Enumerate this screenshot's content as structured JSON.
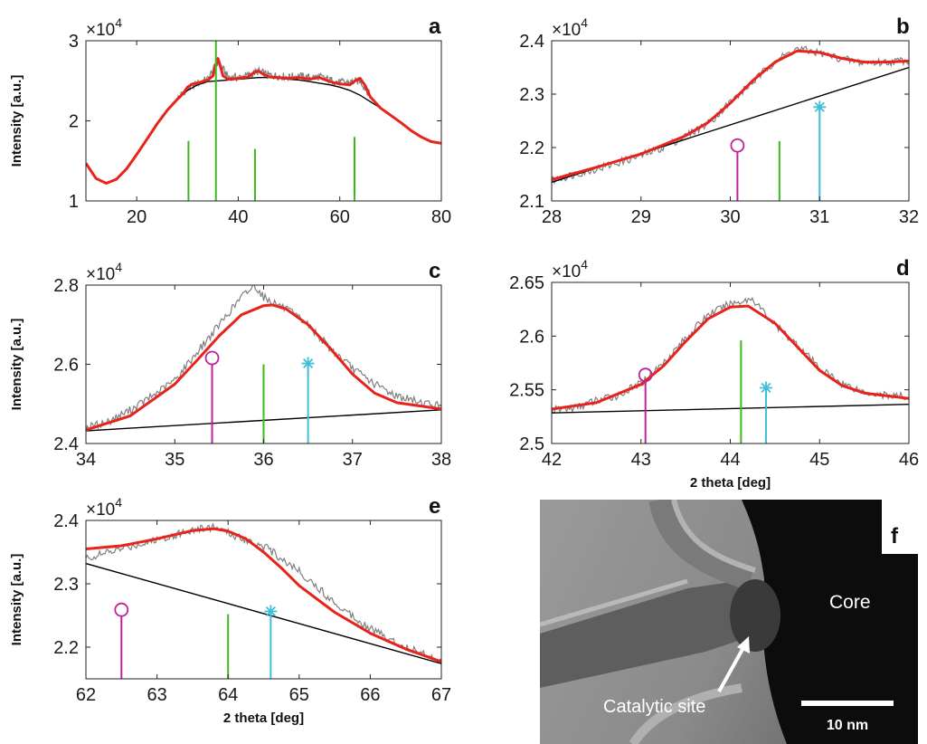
{
  "figure": {
    "ylabel": "Intensity [a.u.]",
    "xlabel": "2 theta [deg]",
    "exponent_prefix": "×10",
    "exponent_power": "4"
  },
  "colors": {
    "raw": "#7f7f7f",
    "fit": "#e8231b",
    "baseline": "#000000",
    "green_ref": "#3cb81c",
    "magenta_ref": "#c0219b",
    "cyan_ref": "#3fbfd9"
  },
  "chart_data": [
    {
      "panel": "a",
      "type": "line",
      "xlim": [
        10,
        80
      ],
      "ylim": [
        1,
        3
      ],
      "xticks": [
        20,
        40,
        60,
        80
      ],
      "yticks": [
        1,
        2,
        3
      ],
      "xtick_labels": [
        "20",
        "40",
        "60",
        "80"
      ],
      "ytick_labels": [
        "1",
        "2",
        "3"
      ],
      "show_ylabel": true,
      "show_xlabel": false,
      "series": [
        {
          "role": "baseline",
          "x": [
            10,
            12,
            14,
            16,
            18,
            20,
            22,
            24,
            26,
            28,
            30,
            32,
            34,
            36,
            38,
            40,
            42,
            44,
            46,
            48,
            50,
            52,
            54,
            56,
            58,
            60,
            62,
            64,
            66,
            68,
            70,
            72,
            74,
            76,
            78,
            80
          ],
          "y": [
            1.47,
            1.28,
            1.22,
            1.27,
            1.4,
            1.58,
            1.77,
            1.96,
            2.13,
            2.27,
            2.38,
            2.45,
            2.49,
            2.5,
            2.51,
            2.52,
            2.53,
            2.54,
            2.54,
            2.53,
            2.52,
            2.51,
            2.49,
            2.47,
            2.45,
            2.42,
            2.38,
            2.32,
            2.24,
            2.16,
            2.07,
            1.98,
            1.88,
            1.8,
            1.74,
            1.72
          ]
        },
        {
          "role": "fit",
          "x": [
            10,
            12,
            14,
            16,
            18,
            20,
            22,
            24,
            26,
            28,
            29,
            30,
            31,
            32,
            33,
            34,
            35,
            35.6,
            36,
            36.4,
            37,
            38,
            40,
            42,
            43,
            44,
            45,
            46,
            48,
            50,
            52,
            54,
            56,
            58,
            60,
            62,
            63,
            64,
            65,
            66,
            68,
            70,
            72,
            74,
            76,
            78,
            80
          ],
          "y": [
            1.47,
            1.28,
            1.22,
            1.27,
            1.4,
            1.58,
            1.77,
            1.96,
            2.13,
            2.27,
            2.33,
            2.42,
            2.46,
            2.47,
            2.49,
            2.51,
            2.56,
            2.7,
            2.78,
            2.7,
            2.56,
            2.52,
            2.53,
            2.55,
            2.6,
            2.62,
            2.58,
            2.55,
            2.54,
            2.53,
            2.54,
            2.52,
            2.54,
            2.49,
            2.46,
            2.45,
            2.5,
            2.53,
            2.44,
            2.3,
            2.16,
            2.07,
            1.98,
            1.88,
            1.8,
            1.74,
            1.72
          ]
        },
        {
          "role": "raw",
          "x": [
            28,
            30,
            32,
            34,
            36,
            38,
            40,
            42,
            44,
            46,
            48,
            50,
            52,
            54,
            56,
            58,
            60,
            62,
            64,
            66
          ],
          "y": [
            2.28,
            2.4,
            2.47,
            2.52,
            2.74,
            2.55,
            2.54,
            2.57,
            2.62,
            2.57,
            2.56,
            2.55,
            2.56,
            2.54,
            2.55,
            2.51,
            2.48,
            2.48,
            2.5,
            2.32
          ]
        }
      ],
      "markers": [
        {
          "x": 30.2,
          "top": 1.75,
          "color": "green",
          "symbol": "none"
        },
        {
          "x": 35.6,
          "top": 3.0,
          "color": "green",
          "symbol": "none"
        },
        {
          "x": 43.3,
          "top": 1.65,
          "color": "green",
          "symbol": "none"
        },
        {
          "x": 62.9,
          "top": 1.8,
          "color": "green",
          "symbol": "none"
        }
      ]
    },
    {
      "panel": "b",
      "type": "line",
      "xlim": [
        28,
        32
      ],
      "ylim": [
        2.1,
        2.4
      ],
      "xticks": [
        28,
        29,
        30,
        31,
        32
      ],
      "yticks": [
        2.1,
        2.2,
        2.3,
        2.4
      ],
      "xtick_labels": [
        "28",
        "29",
        "30",
        "31",
        "32"
      ],
      "ytick_labels": [
        "2.1",
        "2.2",
        "2.3",
        "2.4"
      ],
      "show_ylabel": false,
      "show_xlabel": false,
      "series": [
        {
          "role": "baseline",
          "x": [
            28,
            32
          ],
          "y": [
            2.135,
            2.35
          ]
        },
        {
          "role": "fit",
          "x": [
            28.0,
            28.5,
            29.0,
            29.5,
            29.75,
            30.0,
            30.25,
            30.5,
            30.75,
            31.0,
            31.25,
            31.5,
            31.75,
            32.0
          ],
          "y": [
            2.14,
            2.163,
            2.188,
            2.222,
            2.247,
            2.283,
            2.325,
            2.36,
            2.381,
            2.378,
            2.367,
            2.36,
            2.36,
            2.362
          ]
        },
        {
          "role": "raw",
          "x": [
            28.0,
            28.25,
            28.5,
            28.75,
            29.0,
            29.25,
            29.5,
            29.75,
            30.0,
            30.25,
            30.5,
            30.75,
            31.0,
            31.25,
            31.5,
            31.75,
            32.0
          ],
          "y": [
            2.138,
            2.15,
            2.16,
            2.172,
            2.185,
            2.2,
            2.222,
            2.245,
            2.285,
            2.322,
            2.362,
            2.385,
            2.377,
            2.366,
            2.358,
            2.36,
            2.364
          ]
        }
      ],
      "markers": [
        {
          "x": 30.08,
          "top": 2.192,
          "color": "magenta",
          "symbol": "circle"
        },
        {
          "x": 30.55,
          "top": 2.212,
          "color": "green",
          "symbol": "none"
        },
        {
          "x": 31.0,
          "top": 2.274,
          "color": "cyan",
          "symbol": "star"
        }
      ]
    },
    {
      "panel": "c",
      "type": "line",
      "xlim": [
        34,
        38
      ],
      "ylim": [
        2.4,
        2.8
      ],
      "xticks": [
        34,
        35,
        36,
        37,
        38
      ],
      "yticks": [
        2.4,
        2.6,
        2.8
      ],
      "xtick_labels": [
        "34",
        "35",
        "36",
        "37",
        "38"
      ],
      "ytick_labels": [
        "2.4",
        "2.6",
        "2.8"
      ],
      "show_ylabel": true,
      "show_xlabel": false,
      "series": [
        {
          "role": "baseline",
          "x": [
            34,
            38
          ],
          "y": [
            2.432,
            2.485
          ]
        },
        {
          "role": "fit",
          "x": [
            34.0,
            34.5,
            35.0,
            35.25,
            35.5,
            35.75,
            36.0,
            36.1,
            36.25,
            36.5,
            36.75,
            37.0,
            37.25,
            37.5,
            38.0
          ],
          "y": [
            2.434,
            2.47,
            2.55,
            2.61,
            2.672,
            2.725,
            2.748,
            2.75,
            2.74,
            2.7,
            2.64,
            2.575,
            2.527,
            2.503,
            2.487
          ]
        },
        {
          "role": "raw",
          "x": [
            34.0,
            34.25,
            34.5,
            34.75,
            35.0,
            35.25,
            35.5,
            35.75,
            35.9,
            36.0,
            36.25,
            36.5,
            36.75,
            37.0,
            37.25,
            37.5,
            37.75,
            38.0
          ],
          "y": [
            2.44,
            2.455,
            2.485,
            2.52,
            2.56,
            2.63,
            2.7,
            2.77,
            2.8,
            2.77,
            2.74,
            2.7,
            2.64,
            2.59,
            2.55,
            2.52,
            2.505,
            2.495
          ]
        }
      ],
      "markers": [
        {
          "x": 35.42,
          "top": 2.6,
          "color": "magenta",
          "symbol": "circle"
        },
        {
          "x": 36.0,
          "top": 2.6,
          "color": "green",
          "symbol": "none"
        },
        {
          "x": 36.5,
          "top": 2.6,
          "color": "cyan",
          "symbol": "star"
        }
      ]
    },
    {
      "panel": "d",
      "type": "line",
      "xlim": [
        42,
        46
      ],
      "ylim": [
        2.5,
        2.65
      ],
      "xticks": [
        42,
        43,
        44,
        45,
        46
      ],
      "yticks": [
        2.5,
        2.55,
        2.6,
        2.65
      ],
      "xtick_labels": [
        "42",
        "43",
        "44",
        "45",
        "46"
      ],
      "ytick_labels": [
        "2.5",
        "2.55",
        "2.6",
        "2.65"
      ],
      "show_ylabel": false,
      "show_xlabel": true,
      "series": [
        {
          "role": "baseline",
          "x": [
            42,
            46
          ],
          "y": [
            2.5285,
            2.5365
          ]
        },
        {
          "role": "fit",
          "x": [
            42.0,
            42.5,
            43.0,
            43.25,
            43.5,
            43.75,
            44.0,
            44.2,
            44.5,
            44.75,
            45.0,
            45.25,
            45.5,
            46.0
          ],
          "y": [
            2.532,
            2.538,
            2.555,
            2.572,
            2.595,
            2.616,
            2.627,
            2.628,
            2.612,
            2.59,
            2.568,
            2.554,
            2.547,
            2.542
          ]
        },
        {
          "role": "raw",
          "x": [
            42.0,
            42.25,
            42.5,
            42.75,
            43.0,
            43.25,
            43.5,
            43.75,
            44.0,
            44.25,
            44.5,
            44.75,
            45.0,
            45.25,
            45.5,
            45.75,
            46.0
          ],
          "y": [
            2.531,
            2.533,
            2.54,
            2.545,
            2.556,
            2.575,
            2.598,
            2.62,
            2.63,
            2.635,
            2.61,
            2.592,
            2.57,
            2.556,
            2.548,
            2.545,
            2.543
          ]
        }
      ],
      "markers": [
        {
          "x": 43.05,
          "top": 2.558,
          "color": "magenta",
          "symbol": "circle"
        },
        {
          "x": 44.12,
          "top": 2.596,
          "color": "green",
          "symbol": "none"
        },
        {
          "x": 44.4,
          "top": 2.551,
          "color": "cyan",
          "symbol": "star"
        }
      ]
    },
    {
      "panel": "e",
      "type": "line",
      "xlim": [
        62,
        67
      ],
      "ylim": [
        2.15,
        2.4
      ],
      "xticks": [
        62,
        63,
        64,
        65,
        66,
        67
      ],
      "yticks": [
        2.2,
        2.3,
        2.4
      ],
      "xtick_labels": [
        "62",
        "63",
        "64",
        "65",
        "66",
        "67"
      ],
      "ytick_labels": [
        "2.2",
        "2.3",
        "2.4"
      ],
      "show_ylabel": true,
      "show_xlabel": true,
      "series": [
        {
          "role": "baseline",
          "x": [
            62,
            67
          ],
          "y": [
            2.332,
            2.174
          ]
        },
        {
          "role": "fit",
          "x": [
            62.0,
            62.5,
            63.0,
            63.5,
            63.8,
            64.0,
            64.25,
            64.5,
            64.75,
            65.0,
            65.5,
            66.0,
            66.5,
            67.0
          ],
          "y": [
            2.355,
            2.36,
            2.371,
            2.384,
            2.387,
            2.383,
            2.371,
            2.35,
            2.325,
            2.297,
            2.255,
            2.222,
            2.197,
            2.177
          ]
        },
        {
          "role": "raw",
          "x": [
            62.0,
            62.5,
            63.0,
            63.5,
            63.8,
            64.0,
            64.5,
            65.0,
            65.5,
            66.0,
            66.5,
            67.0
          ],
          "y": [
            2.34,
            2.355,
            2.37,
            2.385,
            2.39,
            2.38,
            2.36,
            2.32,
            2.27,
            2.23,
            2.2,
            2.18
          ]
        }
      ],
      "markers": [
        {
          "x": 62.5,
          "top": 2.249,
          "color": "magenta",
          "symbol": "circle"
        },
        {
          "x": 64.0,
          "top": 2.252,
          "color": "green",
          "symbol": "none"
        },
        {
          "x": 64.6,
          "top": 2.255,
          "color": "cyan",
          "symbol": "star"
        }
      ]
    }
  ],
  "micrograph": {
    "panel": "f",
    "core_label": "Core",
    "site_label": "Catalytic site",
    "scalebar_label": "10 nm"
  }
}
